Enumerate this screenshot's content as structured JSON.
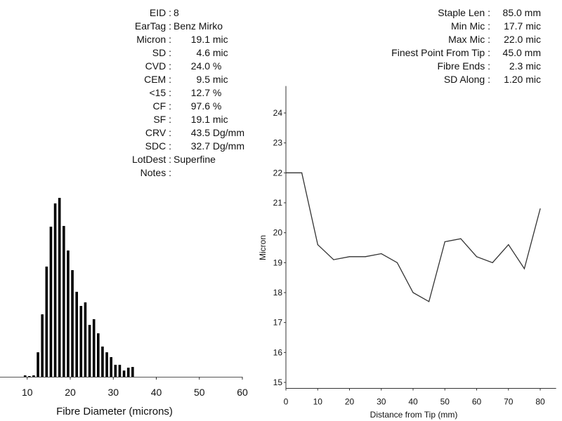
{
  "left_stats": [
    {
      "label": "EID",
      "value": "8",
      "unit": ""
    },
    {
      "label": "EarTag",
      "value": "Benz Mirko",
      "unit": ""
    },
    {
      "label": "Micron",
      "value": "19.1",
      "unit": "mic"
    },
    {
      "label": "SD",
      "value": "4.6",
      "unit": "mic"
    },
    {
      "label": "CVD",
      "value": "24.0",
      "unit": "%"
    },
    {
      "label": "CEM",
      "value": "9.5",
      "unit": "mic"
    },
    {
      "label": "<15",
      "value": "12.7",
      "unit": "%"
    },
    {
      "label": "CF",
      "value": "97.6",
      "unit": "%"
    },
    {
      "label": "SF",
      "value": "19.1",
      "unit": "mic"
    },
    {
      "label": "CRV",
      "value": "43.5",
      "unit": "Dg/mm"
    },
    {
      "label": "SDC",
      "value": "32.7",
      "unit": "Dg/mm"
    },
    {
      "label": "LotDest",
      "value": "Superfine",
      "unit": ""
    },
    {
      "label": "Notes",
      "value": "",
      "unit": ""
    }
  ],
  "right_stats": [
    {
      "label": "Staple Len",
      "value": "85.0 mm"
    },
    {
      "label": "Min Mic",
      "value": "17.7 mic"
    },
    {
      "label": "Max Mic",
      "value": "22.0 mic"
    },
    {
      "label": "Finest Point From Tip",
      "value": "45.0 mm"
    },
    {
      "label": "Fibre Ends",
      "value": "2.3 mic"
    },
    {
      "label": "SD Along",
      "value": "1.20 mic"
    }
  ],
  "chart_data": [
    {
      "type": "bar",
      "title": "",
      "xlabel": "Fibre Diameter (microns)",
      "ylabel": "",
      "xlim": [
        4,
        60
      ],
      "xticks": [
        10,
        20,
        30,
        40,
        50,
        60
      ],
      "grid": false,
      "color": "#000000",
      "categories": [
        9,
        10,
        11,
        12,
        13,
        14,
        15,
        16,
        17,
        18,
        19,
        20,
        21,
        22,
        23,
        24,
        25,
        26,
        27,
        28,
        29,
        30,
        31,
        32,
        33,
        34
      ],
      "values": [
        0.8,
        0.4,
        0.8,
        13.7,
        34.9,
        61.6,
        83.9,
        96.9,
        100,
        84.3,
        70.6,
        59.6,
        47.5,
        39.6,
        41.6,
        29.0,
        32.2,
        24.3,
        16.9,
        13.7,
        11.0,
        6.7,
        6.7,
        3.5,
        5.1,
        5.5
      ],
      "value_units": "relative frequency (% of peak)"
    },
    {
      "type": "line",
      "title": "",
      "xlabel": "Distance from Tip (mm)",
      "ylabel": "Micron",
      "xlim": [
        0,
        85
      ],
      "ylim": [
        14.8,
        24.9
      ],
      "xticks": [
        0,
        10,
        20,
        30,
        40,
        50,
        60,
        70,
        80
      ],
      "yticks": [
        15,
        16,
        17,
        18,
        19,
        20,
        21,
        22,
        23,
        24
      ],
      "grid": false,
      "color": "#333333",
      "x": [
        0,
        5,
        10,
        15,
        20,
        25,
        30,
        35,
        40,
        45,
        50,
        55,
        60,
        65,
        70,
        75,
        80
      ],
      "series": [
        {
          "name": "Micron",
          "values": [
            22.0,
            22.0,
            19.6,
            19.1,
            19.2,
            19.2,
            19.3,
            19.0,
            18.0,
            17.7,
            19.7,
            19.8,
            19.2,
            19.0,
            19.6,
            18.8,
            20.8
          ]
        }
      ]
    }
  ]
}
